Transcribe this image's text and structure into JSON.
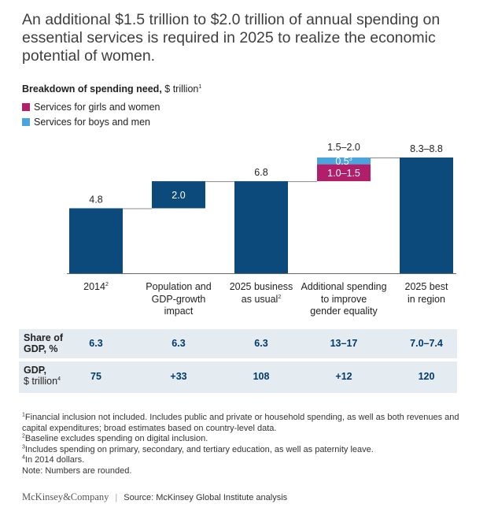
{
  "title": "An additional $1.5 trillion to $2.0 trillion of annual spending on essential services is required in 2025 to realize the economic potential of women.",
  "subtitle": {
    "bold": "Breakdown of spending need,",
    "unit": " $ trillion",
    "sup": "1"
  },
  "legend": [
    {
      "label": "Services for girls and women",
      "color": "#b11f6b"
    },
    {
      "label": "Services for boys and men",
      "color": "#4aa5df"
    }
  ],
  "colors": {
    "navy": "#0b4a7a",
    "magenta": "#b11f6b",
    "lightblue": "#4aa5df",
    "band": "#e4ecf2"
  },
  "chart_data": {
    "type": "bar",
    "subtype": "waterfall",
    "ylim": [
      0,
      9.5
    ],
    "categories": [
      "2014",
      "Population and GDP-growth impact",
      "2025 business as usual",
      "Additional spending to improve gender equality",
      "2025 best in region"
    ],
    "category_labels": [
      {
        "lines": [
          "2014"
        ],
        "sup": "2"
      },
      {
        "lines": [
          "Population and",
          "GDP-growth",
          "impact"
        ]
      },
      {
        "lines": [
          "2025 business",
          "as usual"
        ],
        "sup": "2"
      },
      {
        "lines": [
          "Additional spending",
          "to improve",
          "gender equality"
        ]
      },
      {
        "lines": [
          "2025 best",
          "in region"
        ]
      }
    ],
    "bars": [
      {
        "category": "2014",
        "base": 0,
        "value": 4.8,
        "color": "navy",
        "label": "4.8",
        "label_pos": "above"
      },
      {
        "category": "Population and GDP-growth impact",
        "base": 4.8,
        "value": 2.0,
        "color": "navy",
        "label": "2.0",
        "label_pos": "inside"
      },
      {
        "category": "2025 business as usual",
        "base": 0,
        "value": 6.8,
        "color": "navy",
        "label": "6.8",
        "label_pos": "above"
      },
      {
        "category": "Additional spending to improve gender equality",
        "base": 6.8,
        "value": 1.25,
        "color": "magenta",
        "label": "1.0–1.5",
        "label_pos": "inside"
      },
      {
        "category": "Additional spending to improve gender equality",
        "base": 8.05,
        "value": 0.5,
        "color": "lightblue",
        "label": "0.5",
        "label_sup": "3",
        "label_pos": "inside"
      },
      {
        "category": "2025 best in region",
        "base": 0,
        "value": 8.55,
        "color": "navy",
        "label": "8.3–8.8",
        "label_pos": "above"
      }
    ],
    "stack_total_label": "1.5–2.0"
  },
  "table": {
    "rows": [
      {
        "head": [
          "Share of",
          "GDP, %"
        ],
        "values": [
          "6.3",
          "6.3",
          "6.3",
          "13–17",
          "7.0–7.4"
        ]
      },
      {
        "head": [
          "GDP,",
          "$ trillion"
        ],
        "head_sup": "4",
        "values": [
          "75",
          "+33",
          "108",
          "+12",
          "120"
        ]
      }
    ]
  },
  "notes": [
    {
      "sup": "1",
      "text": "Financial inclusion not included. Includes public and private or household spending, as well as both revenues and capital expenditures; broad estimates based on country-level data."
    },
    {
      "sup": "2",
      "text": "Baseline excludes spending on digital inclusion."
    },
    {
      "sup": "3",
      "text": "Includes spending on primary, secondary, and tertiary education, as well as paternity leave."
    },
    {
      "sup": "4",
      "text": "In 2014 dollars."
    },
    {
      "sup": "",
      "text": "Note: Numbers are rounded."
    }
  ],
  "footer": {
    "brand": "McKinsey&Company",
    "separator": "|",
    "source": "Source: McKinsey Global Institute analysis"
  }
}
